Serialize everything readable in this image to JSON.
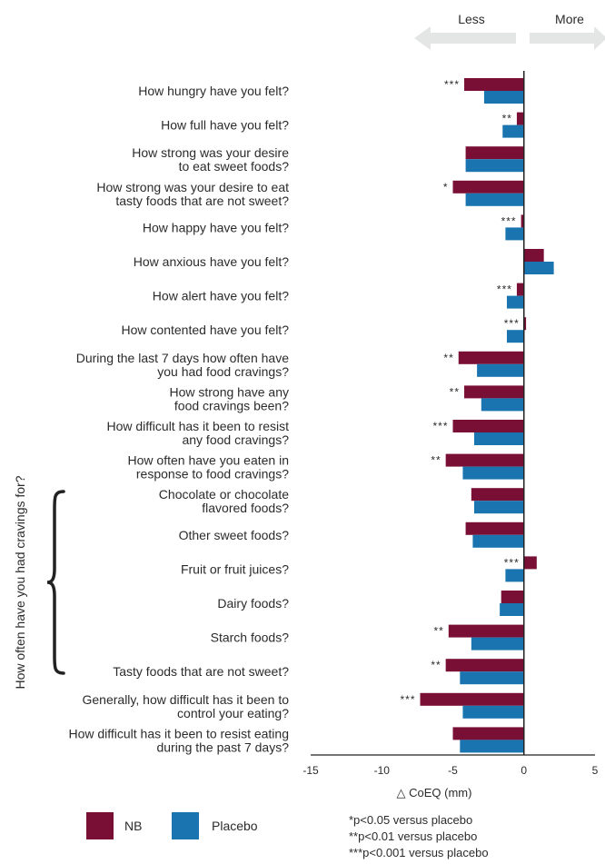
{
  "chart_data": {
    "type": "bar",
    "orientation": "horizontal",
    "xlabel": "△ CoEQ (mm)",
    "xlim": [
      -15,
      5
    ],
    "xticks": [
      -15,
      -10,
      -5,
      0,
      5
    ],
    "direction_labels": {
      "less": "Less",
      "more": "More"
    },
    "group_label": "How often have you had cravings for?",
    "series": [
      {
        "name": "NB",
        "color": "#7a0f35"
      },
      {
        "name": "Placebo",
        "color": "#1a74b0"
      }
    ],
    "categories": [
      {
        "label": [
          "How hungry have you felt?"
        ],
        "nb": -4.2,
        "placebo": -2.8,
        "sig": "***"
      },
      {
        "label": [
          "How full have you felt?"
        ],
        "nb": -0.5,
        "placebo": -1.5,
        "sig": "**"
      },
      {
        "label": [
          "How strong was your desire",
          "to eat sweet foods?"
        ],
        "nb": -4.1,
        "placebo": -4.1,
        "sig": ""
      },
      {
        "label": [
          "How strong was your desire to eat",
          "tasty foods that are not sweet?"
        ],
        "nb": -5.0,
        "placebo": -4.1,
        "sig": "*"
      },
      {
        "label": [
          "How happy have you felt?"
        ],
        "nb": -0.2,
        "placebo": -1.3,
        "sig": "***"
      },
      {
        "label": [
          "How anxious have you felt?"
        ],
        "nb": 1.4,
        "placebo": 2.1,
        "sig": ""
      },
      {
        "label": [
          "How alert have you felt?"
        ],
        "nb": -0.5,
        "placebo": -1.2,
        "sig": "***"
      },
      {
        "label": [
          "How contented have you felt?"
        ],
        "nb": 0.15,
        "placebo": -1.2,
        "sig": "***"
      },
      {
        "label": [
          "During the last 7 days how often have",
          "you had food cravings?"
        ],
        "nb": -4.6,
        "placebo": -3.3,
        "sig": "**"
      },
      {
        "label": [
          "How strong have any",
          "food cravings been?"
        ],
        "nb": -4.2,
        "placebo": -3.0,
        "sig": "**"
      },
      {
        "label": [
          "How difficult has it been to resist",
          "any food cravings?"
        ],
        "nb": -5.0,
        "placebo": -3.5,
        "sig": "***"
      },
      {
        "label": [
          "How often have you eaten in",
          "response to food cravings?"
        ],
        "nb": -5.5,
        "placebo": -4.3,
        "sig": "**"
      },
      {
        "label": [
          "Chocolate or chocolate",
          "flavored foods?"
        ],
        "nb": -3.7,
        "placebo": -3.5,
        "sig": ""
      },
      {
        "label": [
          "Other sweet foods?"
        ],
        "nb": -4.1,
        "placebo": -3.6,
        "sig": ""
      },
      {
        "label": [
          "Fruit or fruit juices?"
        ],
        "nb": 0.9,
        "placebo": -1.3,
        "sig": "***"
      },
      {
        "label": [
          "Dairy foods?"
        ],
        "nb": -1.6,
        "placebo": -1.7,
        "sig": ""
      },
      {
        "label": [
          "Starch foods?"
        ],
        "nb": -5.3,
        "placebo": -3.7,
        "sig": "**"
      },
      {
        "label": [
          "Tasty foods that are not sweet?"
        ],
        "nb": -5.5,
        "placebo": -4.5,
        "sig": "**"
      },
      {
        "label": [
          "Generally, how difficult has it been to",
          "control your eating?"
        ],
        "nb": -7.3,
        "placebo": -4.3,
        "sig": "***"
      },
      {
        "label": [
          "How difficult has it been to resist eating",
          "during the past 7 days?"
        ],
        "nb": -5.0,
        "placebo": -4.5,
        "sig": ""
      }
    ],
    "footnotes": [
      "*p<0.05 versus placebo",
      "**p<0.01 versus placebo",
      "***p<0.001 versus placebo"
    ],
    "grid": false,
    "legend_position": "bottom-left"
  }
}
